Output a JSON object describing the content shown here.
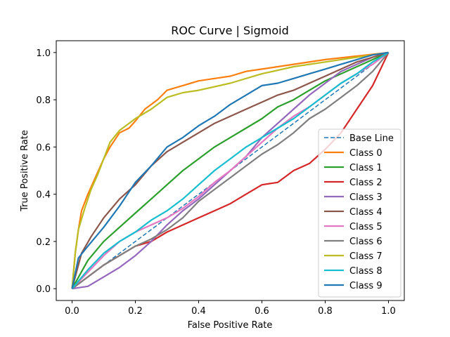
{
  "chart_data": {
    "type": "line",
    "title": "ROC Curve | Sigmoid",
    "xlabel": "False Positive Rate",
    "ylabel": "True Positive Rate",
    "xlim": [
      -0.05,
      1.05
    ],
    "ylim": [
      -0.05,
      1.05
    ],
    "xticks": [
      "0.0",
      "0.2",
      "0.4",
      "0.6",
      "0.8",
      "1.0"
    ],
    "yticks": [
      "0.0",
      "0.2",
      "0.4",
      "0.6",
      "0.8",
      "1.0"
    ],
    "grid": false,
    "legend_position": "lower-right",
    "series": [
      {
        "name": "Base Line",
        "color": "#1f77b4",
        "dashed": true,
        "x": [
          0,
          1
        ],
        "y": [
          0,
          1
        ]
      },
      {
        "name": "Class 0",
        "color": "#ff7f0e",
        "x": [
          0,
          0.01,
          0.02,
          0.03,
          0.05,
          0.07,
          0.1,
          0.12,
          0.15,
          0.18,
          0.2,
          0.23,
          0.27,
          0.3,
          0.35,
          0.4,
          0.45,
          0.5,
          0.55,
          0.6,
          0.7,
          0.8,
          0.9,
          1.0
        ],
        "y": [
          0,
          0.15,
          0.25,
          0.33,
          0.4,
          0.46,
          0.55,
          0.6,
          0.66,
          0.68,
          0.71,
          0.76,
          0.8,
          0.84,
          0.86,
          0.88,
          0.89,
          0.9,
          0.92,
          0.93,
          0.95,
          0.97,
          0.985,
          1.0
        ]
      },
      {
        "name": "Class 1",
        "color": "#2ca02c",
        "x": [
          0,
          0.05,
          0.1,
          0.15,
          0.2,
          0.25,
          0.3,
          0.35,
          0.4,
          0.45,
          0.5,
          0.55,
          0.6,
          0.65,
          0.7,
          0.75,
          0.8,
          0.85,
          0.9,
          0.95,
          1.0
        ],
        "y": [
          0,
          0.12,
          0.2,
          0.26,
          0.32,
          0.38,
          0.44,
          0.5,
          0.55,
          0.6,
          0.64,
          0.68,
          0.72,
          0.77,
          0.8,
          0.84,
          0.88,
          0.91,
          0.94,
          0.97,
          1.0
        ]
      },
      {
        "name": "Class 2",
        "color": "#d62728",
        "x": [
          0,
          0.05,
          0.1,
          0.15,
          0.2,
          0.25,
          0.3,
          0.35,
          0.4,
          0.45,
          0.5,
          0.55,
          0.6,
          0.65,
          0.7,
          0.75,
          0.8,
          0.85,
          0.9,
          0.95,
          1.0
        ],
        "y": [
          0,
          0.05,
          0.1,
          0.14,
          0.18,
          0.2,
          0.24,
          0.27,
          0.3,
          0.33,
          0.36,
          0.4,
          0.44,
          0.45,
          0.5,
          0.53,
          0.59,
          0.66,
          0.76,
          0.86,
          1.0
        ]
      },
      {
        "name": "Class 3",
        "color": "#9467bd",
        "x": [
          0,
          0.05,
          0.1,
          0.15,
          0.2,
          0.25,
          0.3,
          0.35,
          0.4,
          0.45,
          0.5,
          0.55,
          0.6,
          0.65,
          0.7,
          0.75,
          0.8,
          0.85,
          0.9,
          0.95,
          1.0
        ],
        "y": [
          0,
          0.01,
          0.05,
          0.09,
          0.14,
          0.2,
          0.27,
          0.33,
          0.38,
          0.44,
          0.5,
          0.56,
          0.64,
          0.7,
          0.76,
          0.82,
          0.87,
          0.92,
          0.95,
          0.98,
          1.0
        ]
      },
      {
        "name": "Class 4",
        "color": "#8c564b",
        "x": [
          0,
          0.03,
          0.06,
          0.1,
          0.15,
          0.2,
          0.25,
          0.3,
          0.35,
          0.4,
          0.45,
          0.5,
          0.55,
          0.6,
          0.65,
          0.7,
          0.75,
          0.8,
          0.85,
          0.9,
          0.95,
          1.0
        ],
        "y": [
          0,
          0.15,
          0.22,
          0.3,
          0.38,
          0.44,
          0.52,
          0.58,
          0.62,
          0.66,
          0.7,
          0.73,
          0.76,
          0.79,
          0.82,
          0.84,
          0.87,
          0.9,
          0.93,
          0.96,
          0.98,
          1.0
        ]
      },
      {
        "name": "Class 5",
        "color": "#e377c2",
        "x": [
          0,
          0.05,
          0.1,
          0.15,
          0.2,
          0.25,
          0.3,
          0.35,
          0.4,
          0.45,
          0.5,
          0.55,
          0.6,
          0.65,
          0.7,
          0.75,
          0.8,
          0.85,
          0.9,
          0.95,
          1.0
        ],
        "y": [
          0,
          0.07,
          0.14,
          0.2,
          0.24,
          0.27,
          0.3,
          0.34,
          0.39,
          0.45,
          0.5,
          0.56,
          0.62,
          0.68,
          0.73,
          0.77,
          0.82,
          0.87,
          0.91,
          0.95,
          1.0
        ]
      },
      {
        "name": "Class 6",
        "color": "#7f7f7f",
        "x": [
          0,
          0.05,
          0.1,
          0.15,
          0.2,
          0.25,
          0.3,
          0.35,
          0.4,
          0.45,
          0.5,
          0.55,
          0.6,
          0.65,
          0.7,
          0.75,
          0.8,
          0.85,
          0.9,
          0.95,
          1.0
        ],
        "y": [
          0,
          0.05,
          0.1,
          0.14,
          0.18,
          0.21,
          0.25,
          0.3,
          0.37,
          0.42,
          0.47,
          0.52,
          0.57,
          0.61,
          0.66,
          0.72,
          0.76,
          0.81,
          0.86,
          0.92,
          1.0
        ]
      },
      {
        "name": "Class 7",
        "color": "#bcbd22",
        "x": [
          0,
          0.01,
          0.02,
          0.04,
          0.06,
          0.08,
          0.1,
          0.12,
          0.15,
          0.18,
          0.2,
          0.25,
          0.3,
          0.35,
          0.4,
          0.5,
          0.6,
          0.7,
          0.8,
          0.9,
          1.0
        ],
        "y": [
          0,
          0.15,
          0.25,
          0.34,
          0.42,
          0.48,
          0.55,
          0.62,
          0.67,
          0.7,
          0.72,
          0.76,
          0.81,
          0.83,
          0.84,
          0.87,
          0.91,
          0.94,
          0.96,
          0.98,
          1.0
        ]
      },
      {
        "name": "Class 8",
        "color": "#17becf",
        "x": [
          0,
          0.05,
          0.1,
          0.15,
          0.2,
          0.25,
          0.3,
          0.35,
          0.4,
          0.45,
          0.5,
          0.55,
          0.6,
          0.65,
          0.7,
          0.75,
          0.8,
          0.85,
          0.9,
          0.95,
          1.0
        ],
        "y": [
          0,
          0.08,
          0.15,
          0.2,
          0.24,
          0.29,
          0.33,
          0.38,
          0.44,
          0.5,
          0.55,
          0.6,
          0.64,
          0.68,
          0.72,
          0.77,
          0.82,
          0.87,
          0.91,
          0.96,
          1.0
        ]
      },
      {
        "name": "Class 9",
        "color": "#1f77b4",
        "x": [
          0,
          0.02,
          0.05,
          0.1,
          0.15,
          0.2,
          0.25,
          0.3,
          0.35,
          0.4,
          0.45,
          0.5,
          0.55,
          0.6,
          0.65,
          0.7,
          0.75,
          0.8,
          0.85,
          0.9,
          0.95,
          1.0
        ],
        "y": [
          0,
          0.13,
          0.18,
          0.26,
          0.35,
          0.45,
          0.52,
          0.6,
          0.64,
          0.69,
          0.73,
          0.78,
          0.82,
          0.86,
          0.87,
          0.89,
          0.91,
          0.93,
          0.95,
          0.97,
          0.99,
          1.0
        ]
      }
    ]
  }
}
